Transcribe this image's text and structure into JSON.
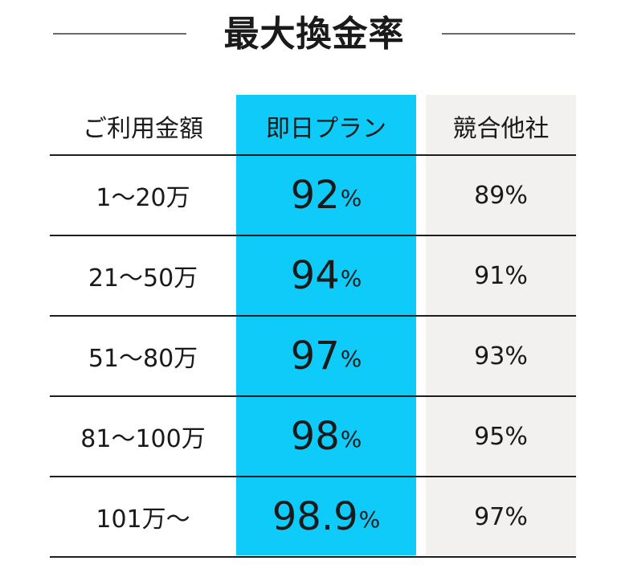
{
  "title": {
    "text": "最大換金率"
  },
  "colors": {
    "plan_column": "#0ECBF9",
    "rival_column": "#F2F1F0",
    "rule": "#1e1e1e",
    "title_rule": "#6b6b6b"
  },
  "table": {
    "headers": [
      "ご利用金額",
      "即日プラン",
      "競合他社"
    ],
    "rows": [
      {
        "amount": "1〜20万",
        "plan_value": "92",
        "plan_unit": "%",
        "rival": "89%"
      },
      {
        "amount": "21〜50万",
        "plan_value": "94",
        "plan_unit": "%",
        "rival": "91%"
      },
      {
        "amount": "51〜80万",
        "plan_value": "97",
        "plan_unit": "%",
        "rival": "93%"
      },
      {
        "amount": "81〜100万",
        "plan_value": "98",
        "plan_unit": "%",
        "rival": "95%"
      },
      {
        "amount": "101万〜",
        "plan_value": "98.9",
        "plan_unit": "%",
        "rival": "97%"
      }
    ]
  }
}
